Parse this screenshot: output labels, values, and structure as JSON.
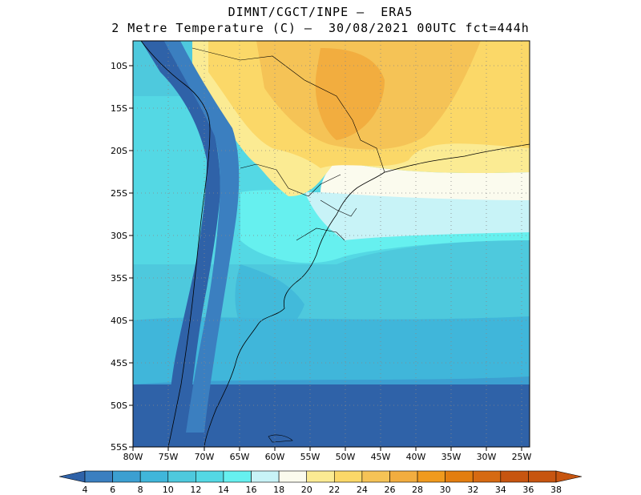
{
  "header": {
    "line1": "DIMNT/CGCT/INPE –  ERA5",
    "line2": "2 Metre Temperature (C) –  30/08/2021 00UTC fct=444h"
  },
  "map": {
    "lon_labels": [
      "80W",
      "75W",
      "70W",
      "65W",
      "60W",
      "55W",
      "50W",
      "45W",
      "40W",
      "35W",
      "30W",
      "25W"
    ],
    "lat_labels": [
      "10S",
      "15S",
      "20S",
      "25S",
      "30S",
      "35S",
      "40S",
      "45S",
      "50S",
      "55S"
    ]
  },
  "colorbar": {
    "labels": [
      "4",
      "6",
      "8",
      "10",
      "12",
      "14",
      "16",
      "18",
      "20",
      "22",
      "24",
      "26",
      "28",
      "30",
      "32",
      "34",
      "36",
      "38"
    ],
    "colors": [
      "#2f62a8",
      "#3b7fc0",
      "#3c9fd1",
      "#40b6da",
      "#4ec9dd",
      "#54d8e4",
      "#66f0ef",
      "#c8f3f7",
      "#fbfbee",
      "#fbeb93",
      "#fbd868",
      "#f5c356",
      "#f2ad3f",
      "#f09a1d",
      "#e37e10",
      "#d66a12",
      "#c75510"
    ]
  }
}
